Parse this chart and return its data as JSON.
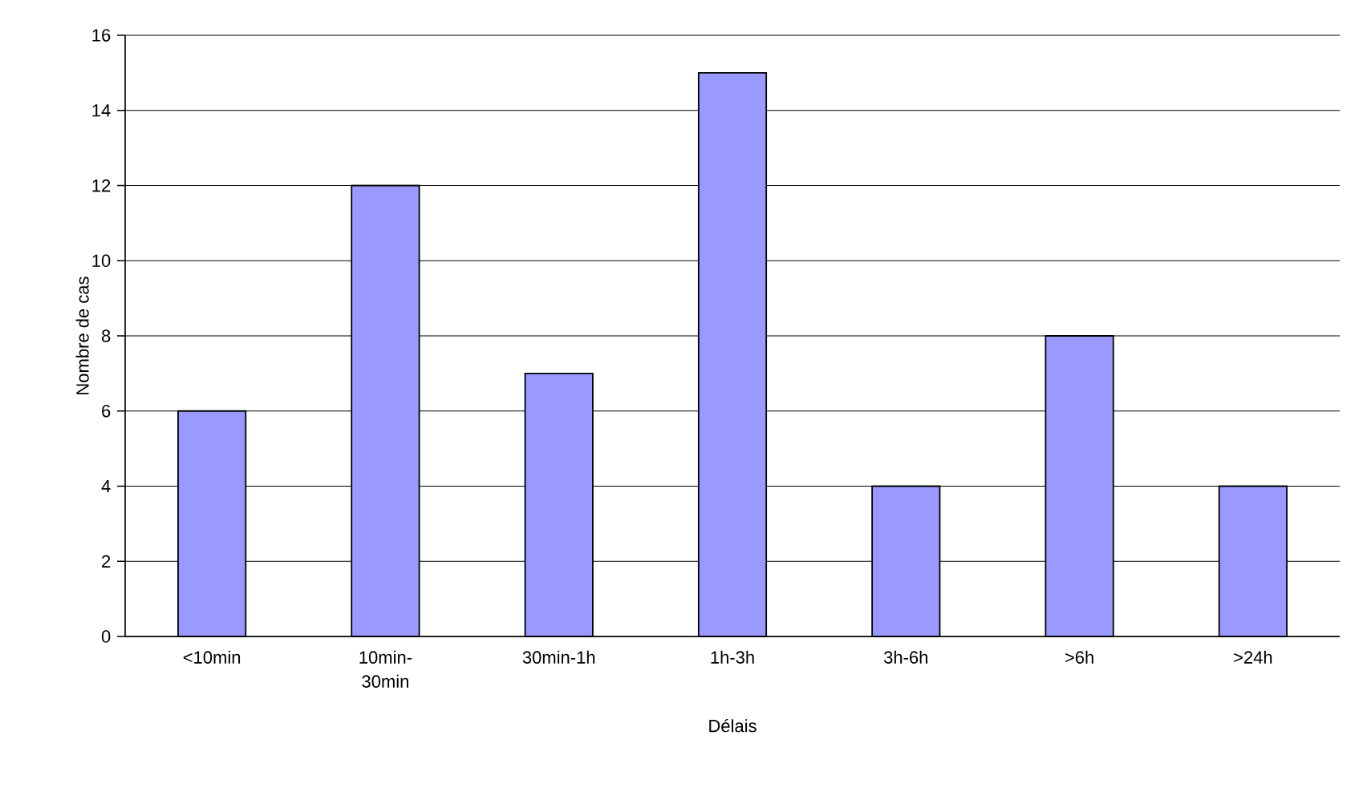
{
  "chart_data": {
    "type": "bar",
    "xlabel": "Délais",
    "ylabel": "Nombre de cas",
    "categories": [
      "<10min",
      "10min-30min",
      "30min-1h",
      "1h-3h",
      "3h-6h",
      ">6h",
      ">24h"
    ],
    "values": [
      6,
      12,
      7,
      15,
      4,
      8,
      4
    ],
    "color": "#9999ff",
    "ylim": [
      0,
      16
    ],
    "yticks": [
      0,
      2,
      4,
      6,
      8,
      10,
      12,
      14,
      16
    ],
    "grid": "y"
  }
}
